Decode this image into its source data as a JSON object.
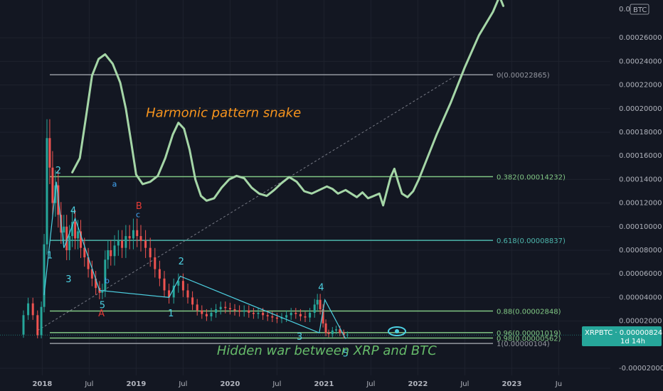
{
  "chart_data": {
    "type": "line",
    "title": "",
    "symbol": "XRPBTC",
    "currency_label": "BTC",
    "price_tag": "XRPBTC · 0.00000824",
    "countdown": "1d 14h",
    "last_price": 8.24e-06,
    "y_axis": {
      "range": [
        -2.6e-05,
        0.000292
      ],
      "ticks": [
        {
          "value": 0.00026,
          "label": "0.00026000"
        },
        {
          "value": 0.00024,
          "label": "0.00024000"
        },
        {
          "value": 0.00022,
          "label": "0.00022000"
        },
        {
          "value": 0.0002,
          "label": "0.00020000"
        },
        {
          "value": 0.00018,
          "label": "0.00018000"
        },
        {
          "value": 0.00016,
          "label": "0.00016000"
        },
        {
          "value": 0.00014,
          "label": "0.00014000"
        },
        {
          "value": 0.00012,
          "label": "0.00012000"
        },
        {
          "value": 0.0001,
          "label": "0.00010000"
        },
        {
          "value": 8e-05,
          "label": "0.00008000"
        },
        {
          "value": 6e-05,
          "label": "0.00006000"
        },
        {
          "value": 4e-05,
          "label": "0.00004000"
        },
        {
          "value": 2e-05,
          "label": "0.00002000"
        },
        {
          "value": -2e-05,
          "label": "-0.00002000"
        }
      ],
      "top_label": "0.0"
    },
    "x_axis": {
      "range": [
        2017.5,
        2024.0
      ],
      "ticks": [
        {
          "value": 2017.95,
          "label": "2018",
          "bold": true
        },
        {
          "value": 2018.45,
          "label": "Jul",
          "bold": false
        },
        {
          "value": 2018.95,
          "label": "2019",
          "bold": true
        },
        {
          "value": 2019.45,
          "label": "Jul",
          "bold": false
        },
        {
          "value": 2019.95,
          "label": "2020",
          "bold": true
        },
        {
          "value": 2020.45,
          "label": "Jul",
          "bold": false
        },
        {
          "value": 2020.95,
          "label": "2021",
          "bold": true
        },
        {
          "value": 2021.45,
          "label": "Jul",
          "bold": false
        },
        {
          "value": 2021.95,
          "label": "2022",
          "bold": true
        },
        {
          "value": 2022.45,
          "label": "Jul",
          "bold": false
        },
        {
          "value": 2022.95,
          "label": "2023",
          "bold": true
        },
        {
          "value": 2023.45,
          "label": "Ju",
          "bold": false
        }
      ]
    },
    "fib_levels": [
      {
        "level": "0",
        "value": 0.00022865,
        "label": "0(0.00022865)",
        "color": "#9598a1"
      },
      {
        "level": "0.382",
        "value": 0.00014232,
        "label": "0.382(0.00014232)",
        "color": "#81c784"
      },
      {
        "level": "0.618",
        "value": 8.837e-05,
        "label": "0.618(0.00008837)",
        "color": "#4db6ac"
      },
      {
        "level": "0.88",
        "value": 2.848e-05,
        "label": "0.88(0.00002848)",
        "color": "#81c784"
      },
      {
        "level": "0.96",
        "value": 1.019e-05,
        "label": "0.96(0.00001019)",
        "color": "#81c784"
      },
      {
        "level": "0.98",
        "value": 5.62e-06,
        "label": "0.98(0.00000562)",
        "color": "#81c784"
      },
      {
        "level": "1",
        "value": 1.04e-06,
        "label": "1(0.00000104)",
        "color": "#9598a1"
      }
    ],
    "price_series": [
      [
        2017.68,
        8.5e-06
      ],
      [
        2017.75,
        2.5e-05
      ],
      [
        2017.8,
        3.5e-05
      ],
      [
        2017.85,
        2.5e-05
      ],
      [
        2017.9,
        8e-06
      ],
      [
        2017.94,
        3.2e-05
      ],
      [
        2017.97,
        8.5e-05
      ],
      [
        2018.0,
        0.000175
      ],
      [
        2018.03,
        0.00015
      ],
      [
        2018.06,
        0.00012
      ],
      [
        2018.09,
        0.000135
      ],
      [
        2018.12,
        0.00011
      ],
      [
        2018.15,
        9.5e-05
      ],
      [
        2018.18,
        0.0001
      ],
      [
        2018.21,
        8e-05
      ],
      [
        2018.24,
        9.2e-05
      ],
      [
        2018.27,
        0.000104
      ],
      [
        2018.3,
        9e-05
      ],
      [
        2018.33,
        9.6e-05
      ],
      [
        2018.36,
        8.2e-05
      ],
      [
        2018.4,
        7.4e-05
      ],
      [
        2018.44,
        6.4e-05
      ],
      [
        2018.48,
        5.6e-05
      ],
      [
        2018.52,
        4.8e-05
      ],
      [
        2018.56,
        4.4e-05
      ],
      [
        2018.59,
        4.6e-05
      ],
      [
        2018.62,
        7.2e-05
      ],
      [
        2018.65,
        8e-05
      ],
      [
        2018.68,
        7.5e-05
      ],
      [
        2018.72,
        8.4e-05
      ],
      [
        2018.76,
        8.8e-05
      ],
      [
        2018.8,
        8.2e-05
      ],
      [
        2018.84,
        9.2e-05
      ],
      [
        2018.88,
        9e-05
      ],
      [
        2018.92,
        9.7e-05
      ],
      [
        2018.96,
        9.2e-05
      ],
      [
        2019.0,
        8.8e-05
      ],
      [
        2019.05,
        8.2e-05
      ],
      [
        2019.1,
        7.4e-05
      ],
      [
        2019.15,
        6.4e-05
      ],
      [
        2019.2,
        5.6e-05
      ],
      [
        2019.25,
        4.6e-05
      ],
      [
        2019.3,
        4e-05
      ],
      [
        2019.35,
        5e-05
      ],
      [
        2019.4,
        5.4e-05
      ],
      [
        2019.45,
        4.6e-05
      ],
      [
        2019.5,
        4e-05
      ],
      [
        2019.55,
        3.4e-05
      ],
      [
        2019.6,
        2.9e-05
      ],
      [
        2019.65,
        2.6e-05
      ],
      [
        2019.7,
        2.4e-05
      ],
      [
        2019.75,
        2.7e-05
      ],
      [
        2019.8,
        3e-05
      ],
      [
        2019.85,
        3.2e-05
      ],
      [
        2019.9,
        3.1e-05
      ],
      [
        2019.95,
        3e-05
      ],
      [
        2020.0,
        2.9e-05
      ],
      [
        2020.05,
        2.8e-05
      ],
      [
        2020.1,
        2.9e-05
      ],
      [
        2020.15,
        2.7e-05
      ],
      [
        2020.2,
        2.6e-05
      ],
      [
        2020.25,
        2.7e-05
      ],
      [
        2020.3,
        2.5e-05
      ],
      [
        2020.35,
        2.4e-05
      ],
      [
        2020.4,
        2.3e-05
      ],
      [
        2020.45,
        2.2e-05
      ],
      [
        2020.5,
        2.3e-05
      ],
      [
        2020.55,
        2.5e-05
      ],
      [
        2020.6,
        2.7e-05
      ],
      [
        2020.65,
        2.6e-05
      ],
      [
        2020.7,
        2.4e-05
      ],
      [
        2020.75,
        2.3e-05
      ],
      [
        2020.8,
        2.7e-05
      ],
      [
        2020.85,
        3.4e-05
      ],
      [
        2020.88,
        3.8e-05
      ],
      [
        2020.91,
        3e-05
      ],
      [
        2020.94,
        1.8e-05
      ],
      [
        2020.97,
        1e-05
      ],
      [
        2021.0,
        9e-06
      ],
      [
        2021.04,
        1.2e-05
      ],
      [
        2021.08,
        1.3e-05
      ],
      [
        2021.12,
        1e-05
      ],
      [
        2021.16,
        8e-06
      ],
      [
        2021.2,
        8.5e-06
      ]
    ],
    "snake_path": [
      [
        2018.27,
        0.000146
      ],
      [
        2018.35,
        0.000158
      ],
      [
        2018.42,
        0.000195
      ],
      [
        2018.48,
        0.000228
      ],
      [
        2018.55,
        0.000242
      ],
      [
        2018.62,
        0.000246
      ],
      [
        2018.7,
        0.000238
      ],
      [
        2018.78,
        0.000222
      ],
      [
        2018.84,
        0.0002
      ],
      [
        2018.9,
        0.00017
      ],
      [
        2018.95,
        0.000144
      ],
      [
        2019.02,
        0.000136
      ],
      [
        2019.1,
        0.000138
      ],
      [
        2019.18,
        0.000143
      ],
      [
        2019.26,
        0.000158
      ],
      [
        2019.34,
        0.000178
      ],
      [
        2019.4,
        0.000188
      ],
      [
        2019.46,
        0.000183
      ],
      [
        2019.52,
        0.000165
      ],
      [
        2019.58,
        0.00014
      ],
      [
        2019.64,
        0.000126
      ],
      [
        2019.7,
        0.000122
      ],
      [
        2019.78,
        0.000124
      ],
      [
        2019.86,
        0.000133
      ],
      [
        2019.94,
        0.00014
      ],
      [
        2020.02,
        0.000143
      ],
      [
        2020.1,
        0.000141
      ],
      [
        2020.18,
        0.000133
      ],
      [
        2020.26,
        0.000128
      ],
      [
        2020.34,
        0.000126
      ],
      [
        2020.42,
        0.000131
      ],
      [
        2020.5,
        0.000137
      ],
      [
        2020.58,
        0.000142
      ],
      [
        2020.66,
        0.000138
      ],
      [
        2020.74,
        0.00013
      ],
      [
        2020.82,
        0.000128
      ],
      [
        2020.9,
        0.000131
      ],
      [
        2020.98,
        0.000134
      ],
      [
        2021.04,
        0.000132
      ],
      [
        2021.1,
        0.000128
      ],
      [
        2021.18,
        0.000131
      ],
      [
        2021.24,
        0.000128
      ],
      [
        2021.3,
        0.000125
      ],
      [
        2021.36,
        0.000129
      ],
      [
        2021.42,
        0.000124
      ],
      [
        2021.48,
        0.000126
      ],
      [
        2021.54,
        0.000128
      ],
      [
        2021.58,
        0.000118
      ],
      [
        2021.62,
        0.00013
      ],
      [
        2021.66,
        0.000142
      ],
      [
        2021.7,
        0.000149
      ],
      [
        2021.74,
        0.000138
      ],
      [
        2021.78,
        0.000128
      ],
      [
        2021.84,
        0.000125
      ],
      [
        2021.9,
        0.00013
      ],
      [
        2021.96,
        0.00014
      ],
      [
        2022.05,
        0.000158
      ],
      [
        2022.15,
        0.000178
      ],
      [
        2022.3,
        0.000205
      ],
      [
        2022.45,
        0.000235
      ],
      [
        2022.6,
        0.000262
      ],
      [
        2022.75,
        0.000282
      ],
      [
        2022.82,
        0.000295
      ],
      [
        2022.86,
        0.000287
      ]
    ],
    "wave_path": [
      [
        2017.97,
        4.2e-05
      ],
      [
        2018.1,
        0.000138
      ],
      [
        2018.18,
        8.2e-05
      ],
      [
        2018.3,
        0.000107
      ],
      [
        2018.56,
        4.6e-05
      ],
      [
        2019.3,
        4e-05
      ],
      [
        2019.42,
        5.8e-05
      ],
      [
        2020.9,
        1e-05
      ],
      [
        2020.96,
        3.8e-05
      ],
      [
        2021.18,
        5e-06
      ]
    ],
    "diagonal": {
      "from": [
        2017.9,
        1.2e-05
      ],
      "to": [
        2022.37,
        0.00022865
      ]
    },
    "wave_labels": [
      {
        "text": "2",
        "x": 2018.12,
        "y": 0.000145,
        "color": "#4dd0e1",
        "size": "large"
      },
      {
        "text": "4",
        "x": 2018.28,
        "y": 0.000111,
        "color": "#4dd0e1",
        "size": "large"
      },
      {
        "text": "1",
        "x": 2018.03,
        "y": 7.3e-05,
        "color": "#4dd0e1",
        "size": "large"
      },
      {
        "text": "3",
        "x": 2018.23,
        "y": 5.3e-05,
        "color": "#4dd0e1",
        "size": "large"
      },
      {
        "text": "5",
        "x": 2018.59,
        "y": 3.1e-05,
        "color": "#4dd0e1",
        "size": "large"
      },
      {
        "text": "A",
        "x": 2018.58,
        "y": 2.4e-05,
        "color": "#e53935",
        "size": "large"
      },
      {
        "text": "a",
        "x": 2018.72,
        "y": 0.000134,
        "color": "#42a5f5",
        "size": "small"
      },
      {
        "text": "b",
        "x": 2018.64,
        "y": 5.2e-05,
        "color": "#42a5f5",
        "size": "small"
      },
      {
        "text": "B",
        "x": 2018.98,
        "y": 0.000115,
        "color": "#e53935",
        "size": "large"
      },
      {
        "text": "c",
        "x": 2018.97,
        "y": 0.000108,
        "color": "#42a5f5",
        "size": "small"
      },
      {
        "text": "1",
        "x": 2019.32,
        "y": 2.4e-05,
        "color": "#4dd0e1",
        "size": "large"
      },
      {
        "text": "2",
        "x": 2019.43,
        "y": 6.8e-05,
        "color": "#4dd0e1",
        "size": "large"
      },
      {
        "text": "4",
        "x": 2020.92,
        "y": 4.6e-05,
        "color": "#4dd0e1",
        "size": "large"
      },
      {
        "text": "3",
        "x": 2020.69,
        "y": 4e-06,
        "color": "#4dd0e1",
        "size": "large"
      },
      {
        "text": "5",
        "x": 2021.18,
        "y": -1e-05,
        "color": "#4dd0e1",
        "size": "large"
      }
    ],
    "annotations": [
      {
        "text": "Harmonic pattern snake",
        "x": 2019.88,
        "y": 0.000193,
        "color": "#f7941d"
      },
      {
        "text": "Hidden war between XRP and BTC",
        "x": 2020.98,
        "y": -8.5e-06,
        "color": "#66bb6a"
      }
    ],
    "colors": {
      "background": "#131722",
      "axis_text": "#b2b5be",
      "bull": "#26a69a",
      "bear": "#ef5350",
      "snake": "#a5d6a7",
      "wave": "#4dd0e1",
      "price_tag": "#26a69a"
    }
  }
}
